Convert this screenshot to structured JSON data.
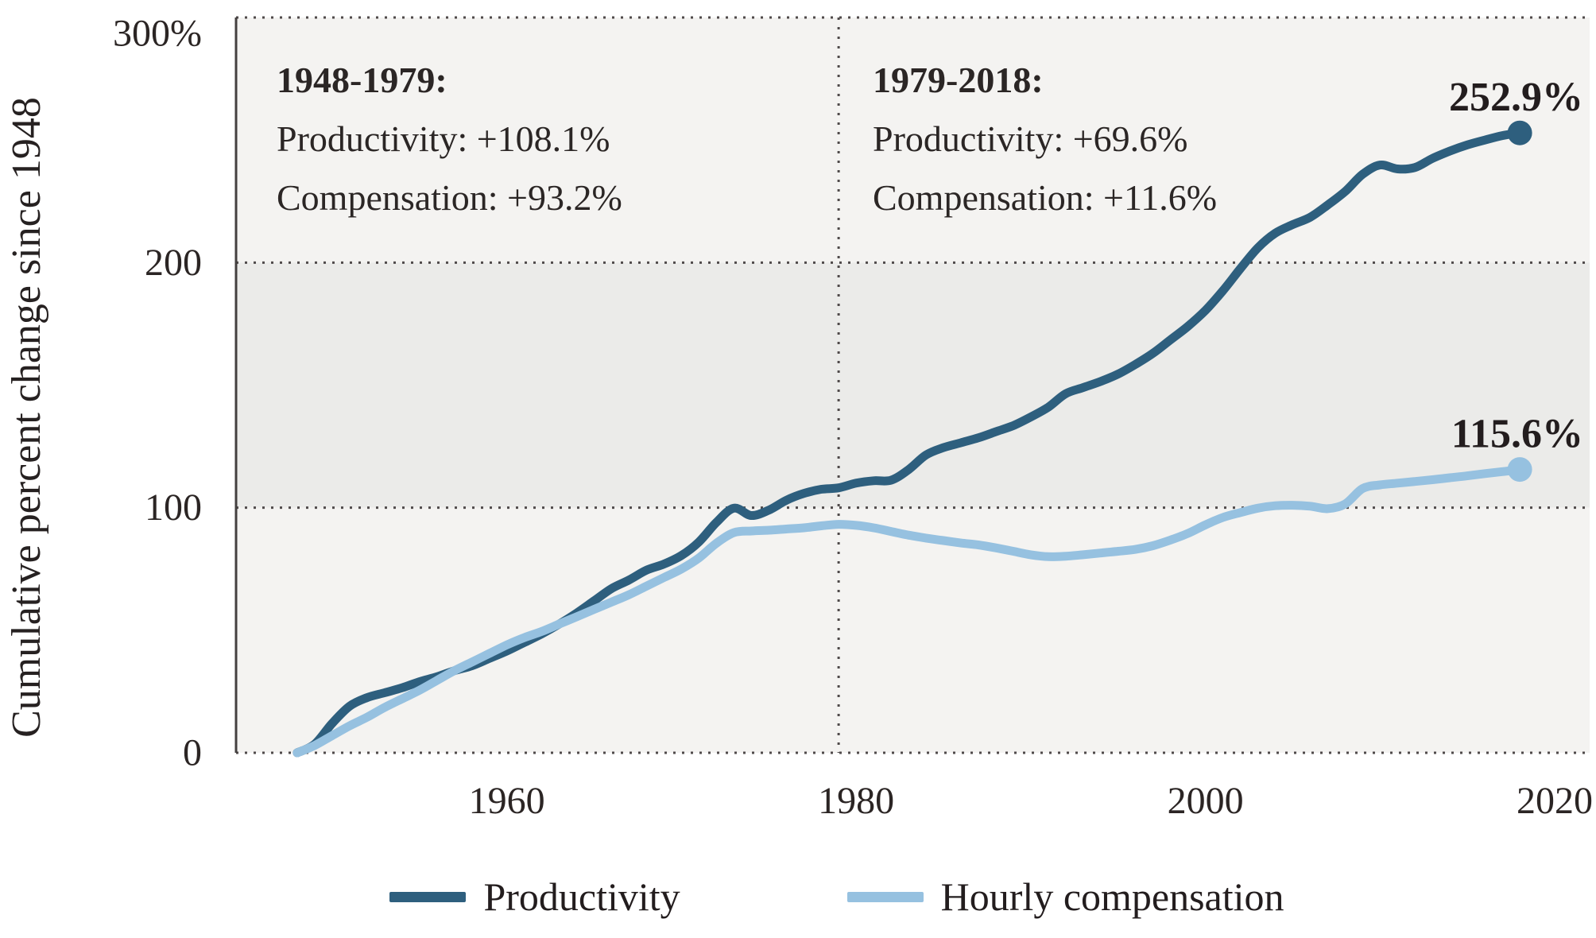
{
  "accent_colors": {
    "productivity": "#2e5f7e",
    "compensation": "#96c1e0",
    "band_light": "#f4f3f1",
    "band_dark": "#ebebe9",
    "gridline": "#4f4a4a",
    "text": "#2b2625"
  },
  "y_axis_title": "Cumulative percent change since 1948",
  "annotations": {
    "era1": {
      "title": "1948-1979:",
      "line1": "Productivity: +108.1%",
      "line2": "Compensation: +93.2%"
    },
    "era2": {
      "title": "1979-2018:",
      "line1": "Productivity: +69.6%",
      "line2": "Compensation: +11.6%"
    }
  },
  "legend": {
    "items": [
      {
        "label": "Productivity",
        "color": "#2e5f7e"
      },
      {
        "label": "Hourly compensation",
        "color": "#96c1e0"
      }
    ]
  },
  "chart_data": {
    "type": "line",
    "title": "",
    "xlabel": "",
    "ylabel": "Cumulative percent change since 1948",
    "ylim": [
      0,
      300
    ],
    "xlim": [
      1948,
      2018
    ],
    "grid": "dotted",
    "legend_position": "bottom",
    "era_divider_year": 1979,
    "x_ticks": [
      1960,
      1980,
      2000,
      2020
    ],
    "y_ticks": [
      {
        "value": 300,
        "label": "300%"
      },
      {
        "value": 200,
        "label": "200"
      },
      {
        "value": 100,
        "label": "100"
      },
      {
        "value": 0,
        "label": "0"
      }
    ],
    "years": [
      1948,
      1949,
      1950,
      1951,
      1952,
      1953,
      1954,
      1955,
      1956,
      1957,
      1958,
      1959,
      1960,
      1961,
      1962,
      1963,
      1964,
      1965,
      1966,
      1967,
      1968,
      1969,
      1970,
      1971,
      1972,
      1973,
      1974,
      1975,
      1976,
      1977,
      1978,
      1979,
      1980,
      1981,
      1982,
      1983,
      1984,
      1985,
      1986,
      1987,
      1988,
      1989,
      1990,
      1991,
      1992,
      1993,
      1994,
      1995,
      1996,
      1997,
      1998,
      1999,
      2000,
      2001,
      2002,
      2003,
      2004,
      2005,
      2006,
      2007,
      2008,
      2009,
      2010,
      2011,
      2012,
      2013,
      2014,
      2015,
      2016,
      2017,
      2018
    ],
    "series": [
      {
        "name": "Productivity",
        "color": "#2e5f7e",
        "end_label": "252.9%",
        "end_value": 252.9,
        "values": [
          0,
          3.5,
          12,
          19,
          22.5,
          24.5,
          26.5,
          29,
          31,
          33.5,
          35.5,
          38.5,
          41.5,
          45,
          48.5,
          52.5,
          57,
          62,
          67,
          70.5,
          74.5,
          77,
          80.5,
          86,
          94,
          99.8,
          96.8,
          99,
          103,
          105.8,
          107.5,
          108.1,
          110,
          111,
          111.2,
          115.5,
          121.5,
          124.5,
          126.5,
          128.5,
          131,
          133.5,
          137,
          141,
          146.5,
          149,
          151.5,
          154.5,
          158.5,
          163,
          168.5,
          174,
          180.5,
          188.5,
          197.5,
          206,
          212,
          215.5,
          218.5,
          223.5,
          229,
          236,
          239.8,
          238.2,
          238.8,
          242.5,
          245.5,
          248,
          250,
          251.8,
          252.9
        ]
      },
      {
        "name": "Hourly compensation",
        "color": "#96c1e0",
        "end_label": "115.6%",
        "end_value": 115.6,
        "values": [
          0,
          3,
          7,
          11,
          14.5,
          18.5,
          22,
          25.5,
          29.5,
          33.5,
          37,
          40.5,
          44,
          47,
          49.5,
          52.5,
          55.5,
          58.5,
          61.5,
          64.5,
          68,
          71.5,
          75,
          79.5,
          85.5,
          89.8,
          90.5,
          90.8,
          91.3,
          91.8,
          92.6,
          93.2,
          92.8,
          91.8,
          90.3,
          88.8,
          87.6,
          86.6,
          85.6,
          84.8,
          83.6,
          82.2,
          80.8,
          80,
          80.2,
          80.8,
          81.5,
          82.2,
          83,
          84.5,
          86.8,
          89.5,
          93,
          96,
          98,
          99.8,
          100.8,
          101,
          100.6,
          99.6,
          101.5,
          107.8,
          109.3,
          110,
          110.7,
          111.4,
          112.2,
          113,
          113.9,
          114.7,
          115.6
        ]
      }
    ]
  }
}
